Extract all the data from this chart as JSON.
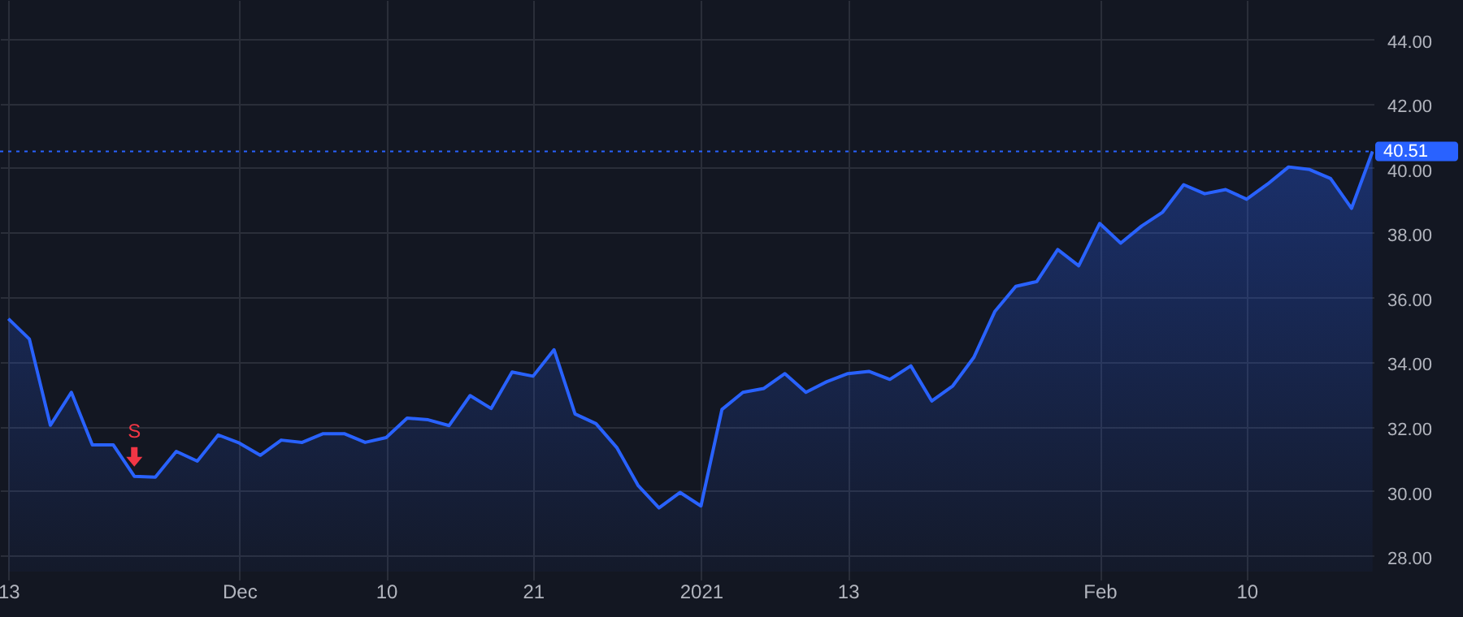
{
  "chart_data": {
    "type": "area",
    "categories": [
      "13",
      null,
      null,
      null,
      null,
      null,
      null,
      null,
      null,
      null,
      null,
      "Dec",
      null,
      null,
      null,
      null,
      null,
      null,
      "10",
      null,
      null,
      null,
      null,
      null,
      null,
      "21",
      null,
      null,
      null,
      null,
      null,
      null,
      null,
      "2021",
      null,
      null,
      null,
      null,
      null,
      null,
      "13",
      null,
      null,
      null,
      null,
      null,
      null,
      null,
      null,
      null,
      null,
      null,
      "Feb",
      null,
      null,
      null,
      null,
      null,
      null,
      "10",
      null,
      null,
      null,
      null,
      null,
      null
    ],
    "series": [
      {
        "color": "#2962ff",
        "values": [
          35.33,
          34.7,
          32.03,
          33.05,
          31.42,
          31.42,
          30.45,
          30.42,
          31.22,
          30.92,
          31.73,
          31.48,
          31.1,
          31.57,
          31.5,
          31.77,
          31.77,
          31.5,
          31.65,
          32.25,
          32.2,
          32.02,
          32.95,
          32.55,
          33.68,
          33.55,
          34.37,
          32.38,
          32.08,
          31.33,
          30.17,
          29.47,
          29.95,
          29.53,
          32.52,
          33.05,
          33.17,
          33.63,
          33.05,
          33.38,
          33.63,
          33.7,
          33.45,
          33.87,
          32.78,
          33.25,
          34.13,
          35.55,
          36.33,
          36.48,
          37.47,
          36.97,
          38.28,
          37.67,
          38.2,
          38.63,
          39.48,
          39.2,
          39.33,
          39.03,
          39.5,
          40.03,
          39.95,
          39.67,
          38.75,
          40.51
        ]
      }
    ],
    "ylim": [
      27.5,
      45.2
    ],
    "yticks": [
      {
        "value": 28,
        "label": "28.00"
      },
      {
        "value": 30,
        "label": "30.00"
      },
      {
        "value": 32,
        "label": "32.00"
      },
      {
        "value": 34,
        "label": "34.00"
      },
      {
        "value": 36,
        "label": "36.00"
      },
      {
        "value": 38,
        "label": "38.00"
      },
      {
        "value": 40,
        "label": "40.00"
      },
      {
        "value": 42,
        "label": "42.00"
      },
      {
        "value": 44,
        "label": "44.00"
      }
    ],
    "grid": true,
    "ref_lines": [
      {
        "axis": "y",
        "value": 40.51,
        "label": "40.51",
        "color": "#2962ff",
        "line_style": "dotted"
      }
    ],
    "annotations": [
      {
        "text": "S",
        "y": 30.45
      }
    ]
  }
}
